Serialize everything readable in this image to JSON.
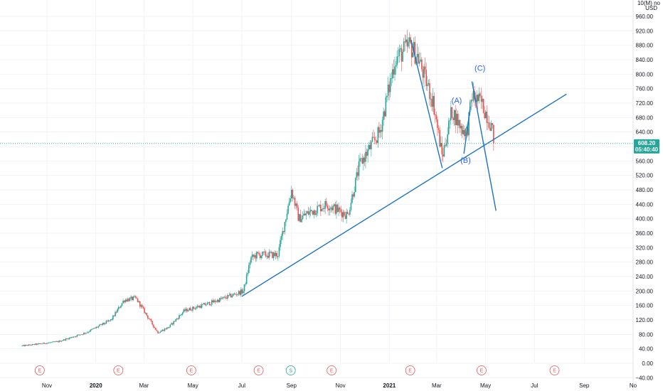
{
  "axis": {
    "currency": "USD",
    "scale_note": "10(M) no"
  },
  "chart_data": {
    "type": "candlestick",
    "ylim": [
      -40,
      980
    ],
    "y_ticks": [
      -40,
      0,
      40,
      80,
      120,
      160,
      200,
      240,
      280,
      320,
      360,
      400,
      440,
      480,
      520,
      560,
      600,
      640,
      680,
      720,
      760,
      800,
      840,
      880,
      920,
      960
    ],
    "y_tick_labels": [
      "−40.00",
      "0.00",
      "40.00",
      "80.00",
      "120.00",
      "160.00",
      "200.00",
      "240.00",
      "280.00",
      "320.00",
      "360.00",
      "400.00",
      "440.00",
      "480.00",
      "520.00",
      "560.00",
      "600.00",
      "640.00",
      "680.00",
      "720.00",
      "760.00",
      "800.00",
      "840.00",
      "880.00",
      "920.00",
      "960.00"
    ],
    "x_ticks": [
      "2019-11-01",
      "2020-01-01",
      "2020-03-01",
      "2020-05-01",
      "2020-07-01",
      "2020-09-01",
      "2020-11-01",
      "2021-01-01",
      "2021-03-01",
      "2021-05-01",
      "2021-07-01",
      "2021-09-01",
      "2021-11-01"
    ],
    "x_tick_labels": [
      "Nov",
      "2020",
      "Mar",
      "May",
      "Jul",
      "Sep",
      "Nov",
      "2021",
      "Mar",
      "May",
      "Jul",
      "Sep",
      "No"
    ],
    "current_price": {
      "price": "608.20",
      "countdown": "05:40:40",
      "value": 608.2
    },
    "price_path": [
      [
        "2019-10-01",
        48
      ],
      [
        "2019-11-15",
        60
      ],
      [
        "2019-12-20",
        85
      ],
      [
        "2020-01-20",
        120
      ],
      [
        "2020-02-05",
        175
      ],
      [
        "2020-02-20",
        180
      ],
      [
        "2020-03-18",
        85
      ],
      [
        "2020-04-01",
        100
      ],
      [
        "2020-04-20",
        145
      ],
      [
        "2020-05-20",
        165
      ],
      [
        "2020-06-15",
        185
      ],
      [
        "2020-07-03",
        200
      ],
      [
        "2020-07-12",
        290
      ],
      [
        "2020-07-20",
        300
      ],
      [
        "2020-08-15",
        300
      ],
      [
        "2020-09-01",
        480
      ],
      [
        "2020-09-10",
        400
      ],
      [
        "2020-09-25",
        420
      ],
      [
        "2020-10-15",
        440
      ],
      [
        "2020-11-01",
        420
      ],
      [
        "2020-11-10",
        410
      ],
      [
        "2020-11-25",
        550
      ],
      [
        "2020-12-20",
        640
      ],
      [
        "2021-01-08",
        840
      ],
      [
        "2021-01-26",
        880
      ],
      [
        "2021-02-05",
        850
      ],
      [
        "2021-02-25",
        720
      ],
      [
        "2021-03-08",
        570
      ],
      [
        "2021-03-20",
        700
      ],
      [
        "2021-04-01",
        650
      ],
      [
        "2021-04-08",
        640
      ],
      [
        "2021-04-14",
        740
      ],
      [
        "2021-04-26",
        720
      ],
      [
        "2021-05-08",
        660
      ],
      [
        "2021-05-12",
        610
      ]
    ],
    "trend_lines": [
      {
        "from": [
          "2020-07-01",
          185
        ],
        "to": [
          "2021-08-10",
          745
        ]
      },
      {
        "from": [
          "2021-01-28",
          895
        ],
        "to": [
          "2021-03-08",
          540
        ]
      },
      {
        "from": [
          "2021-04-14",
          780
        ],
        "to": [
          "2021-05-14",
          422
        ]
      },
      {
        "from": [
          "2021-04-04",
          580
        ],
        "to": [
          "2021-04-12",
          710
        ]
      }
    ],
    "annotations": [
      {
        "text": "(A)",
        "date": "2021-03-26",
        "price": 720
      },
      {
        "text": "(B)",
        "date": "2021-04-06",
        "price": 555
      },
      {
        "text": "(C)",
        "date": "2021-04-24",
        "price": 810
      }
    ],
    "events": [
      {
        "label": "E",
        "kind": "earnings",
        "date": "2019-10-23"
      },
      {
        "label": "E",
        "kind": "earnings",
        "date": "2020-01-29"
      },
      {
        "label": "E",
        "kind": "earnings",
        "date": "2020-04-29"
      },
      {
        "label": "E",
        "kind": "earnings",
        "date": "2020-07-22"
      },
      {
        "label": "S",
        "kind": "split",
        "date": "2020-08-31"
      },
      {
        "label": "E",
        "kind": "earnings",
        "date": "2020-10-21"
      },
      {
        "label": "E",
        "kind": "earnings",
        "date": "2021-01-27"
      },
      {
        "label": "E",
        "kind": "earnings",
        "date": "2021-04-26"
      },
      {
        "label": "E",
        "kind": "earnings",
        "date": "2021-07-26"
      }
    ],
    "colors": {
      "up": "#26a69a",
      "down": "#ef5350",
      "line": "#1e73be",
      "annotation": "#2962ff",
      "event": "#e05a5a",
      "split": "#26a69a",
      "price_label": "#26a69a",
      "price_line": "#26a69a"
    }
  }
}
